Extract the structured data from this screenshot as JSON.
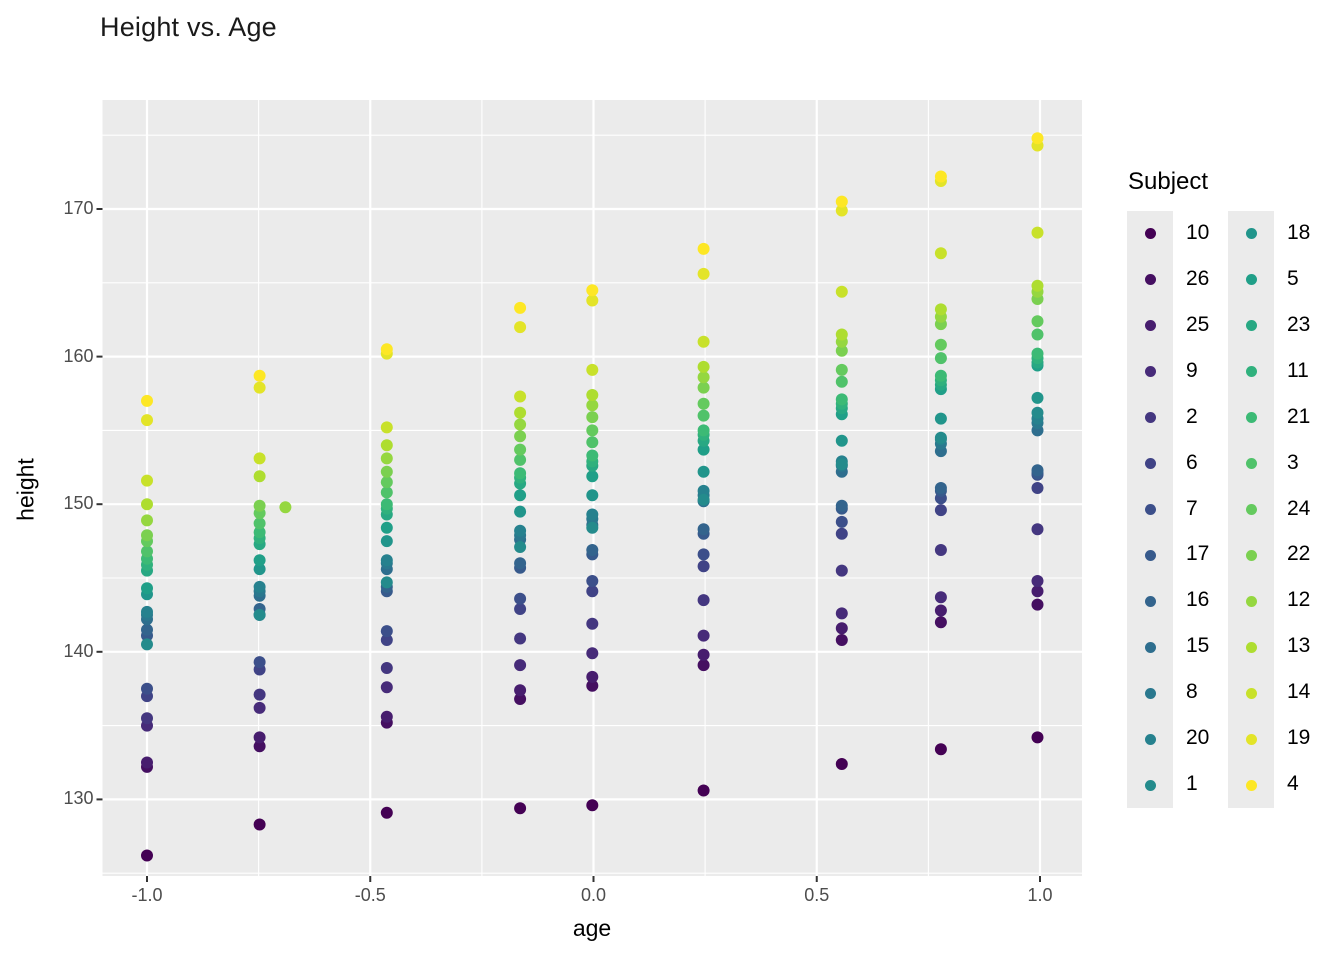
{
  "title": "Height vs. Age",
  "axes": {
    "x": {
      "label": "age",
      "tick_labels": [
        "-1.0",
        "-0.5",
        "0.0",
        "0.5",
        "1.0"
      ],
      "tick_values": [
        -1.0,
        -0.5,
        0.0,
        0.5,
        1.0
      ],
      "minor_values": [
        -0.75,
        -0.25,
        0.25,
        0.75
      ]
    },
    "y": {
      "label": "height",
      "tick_labels": [
        "130",
        "140",
        "150",
        "160",
        "170"
      ],
      "tick_values": [
        130,
        140,
        150,
        160,
        170
      ],
      "minor_values": [
        125,
        135,
        145,
        155,
        165,
        175
      ]
    }
  },
  "legend": {
    "title": "Subject",
    "rows_per_column": 13
  },
  "colors": {
    "panel_background": "#ebebeb",
    "gridline": "#ffffff",
    "tick_mark": "#333333",
    "tick_text": "#4d4d4d",
    "title_text": "#1a1a1a"
  },
  "chart_data": {
    "type": "scatter",
    "title": "Height vs. Age",
    "xlabel": "age",
    "ylabel": "height",
    "xlim": [
      -1.1,
      1.09
    ],
    "ylim": [
      124.8,
      177.4
    ],
    "grid": "on",
    "legend_position": "right",
    "x": [
      -1.0,
      -0.7479,
      -0.463,
      -0.1643,
      -0.0027,
      0.2466,
      0.5562,
      0.7781,
      0.9945
    ],
    "series": [
      {
        "name": "10",
        "color": "#440154",
        "heights": [
          126.2,
          128.3,
          129.1,
          129.4,
          129.6,
          130.6,
          132.4,
          133.4,
          134.2
        ]
      },
      {
        "name": "26",
        "color": "#450f61",
        "heights": [
          132.2,
          133.6,
          135.2,
          136.8,
          137.7,
          139.1,
          140.8,
          142.0,
          143.2
        ]
      },
      {
        "name": "25",
        "color": "#471d6e",
        "heights": [
          132.5,
          134.2,
          135.6,
          137.4,
          138.3,
          139.8,
          141.6,
          142.8,
          144.1
        ]
      },
      {
        "name": "9",
        "color": "#472b79",
        "heights": [
          135.0,
          136.2,
          137.6,
          139.1,
          139.9,
          141.1,
          142.6,
          143.7,
          144.8
        ]
      },
      {
        "name": "2",
        "color": "#443780",
        "heights": [
          135.5,
          137.1,
          138.9,
          140.9,
          141.9,
          143.5,
          145.5,
          146.9,
          148.3
        ]
      },
      {
        "name": "6",
        "color": "#404386",
        "heights": [
          137.0,
          138.8,
          140.8,
          142.9,
          144.1,
          145.8,
          148.0,
          149.6,
          151.1
        ]
      },
      {
        "name": "7",
        "color": "#3c4f8a",
        "heights": [
          137.5,
          139.3,
          141.4,
          143.6,
          144.8,
          146.6,
          148.8,
          150.4,
          152.0
        ]
      },
      {
        "name": "17",
        "color": "#375a8c",
        "heights": [
          141.1,
          142.5,
          144.1,
          145.7,
          146.6,
          148.0,
          149.7,
          150.9,
          152.1
        ]
      },
      {
        "name": "16",
        "color": "#33648d",
        "heights": [
          141.5,
          142.9,
          144.4,
          146.0,
          146.9,
          148.3,
          149.9,
          151.1,
          152.3
        ]
      },
      {
        "name": "15",
        "color": "#2e6e8e",
        "heights": [
          142.2,
          143.8,
          145.6,
          147.6,
          148.6,
          150.2,
          152.2,
          153.6,
          155.0
        ]
      },
      {
        "name": "8",
        "color": "#2a788e",
        "heights": [
          142.5,
          144.1,
          146.0,
          147.9,
          149.0,
          150.6,
          152.6,
          154.1,
          155.5
        ]
      },
      {
        "name": "20",
        "color": "#26818e",
        "heights": [
          142.7,
          144.4,
          146.2,
          148.2,
          149.3,
          150.9,
          152.9,
          154.4,
          155.8
        ]
      },
      {
        "name": "1",
        "color": "#248b8c",
        "heights": [
          140.5,
          142.5,
          144.7,
          147.1,
          148.4,
          150.3,
          152.7,
          154.5,
          156.2
        ]
      },
      {
        "name": "18",
        "color": "#21958b",
        "heights": [
          143.9,
          145.6,
          147.5,
          149.5,
          150.6,
          152.2,
          154.3,
          155.8,
          157.2
        ]
      },
      {
        "name": "5",
        "color": "#209f88",
        "heights": [
          144.3,
          146.2,
          148.4,
          150.6,
          151.9,
          153.7,
          156.1,
          157.8,
          159.4
        ]
      },
      {
        "name": "23",
        "color": "#28a883",
        "heights": [
          145.5,
          147.3,
          149.3,
          151.4,
          152.6,
          154.3,
          156.5,
          158.1,
          159.6
        ]
      },
      {
        "name": "11",
        "color": "#30b17d",
        "heights": [
          145.9,
          147.7,
          149.7,
          151.8,
          152.9,
          154.7,
          156.8,
          158.4,
          159.9
        ]
      },
      {
        "name": "21",
        "color": "#3cba75",
        "heights": [
          146.3,
          148.1,
          150.0,
          152.1,
          153.3,
          155.0,
          157.1,
          158.7,
          160.2
        ]
      },
      {
        "name": "3",
        "color": "#50c26a",
        "heights": [
          146.8,
          148.7,
          150.8,
          153.0,
          154.2,
          156.0,
          158.3,
          159.9,
          161.5
        ]
      },
      {
        "name": "24",
        "color": "#64ca5e",
        "heights": [
          147.5,
          149.4,
          151.5,
          153.7,
          155.0,
          156.8,
          159.1,
          160.8,
          162.4
        ]
      },
      {
        "name": "22",
        "color": "#7bd050",
        "heights": [
          147.9,
          149.9,
          152.2,
          154.6,
          155.9,
          157.9,
          160.4,
          162.2,
          163.9
        ]
      },
      {
        "name": "12",
        "color": "#95d740",
        "heights": [
          148.9,
          149.8,
          153.1,
          155.4,
          156.7,
          158.6,
          161.0,
          162.7,
          164.4
        ]
      },
      {
        "name": "13",
        "color": "#aedd30",
        "heights": [
          150.0,
          151.9,
          154.0,
          156.2,
          157.4,
          159.3,
          161.5,
          163.2,
          164.8
        ]
      },
      {
        "name": "14",
        "color": "#c8e12a",
        "heights": [
          151.6,
          153.1,
          155.2,
          157.3,
          159.1,
          161.0,
          164.4,
          167.0,
          168.4
        ]
      },
      {
        "name": "19",
        "color": "#e3e428",
        "heights": [
          155.7,
          157.9,
          160.2,
          162.0,
          163.8,
          165.6,
          169.9,
          171.9,
          174.3
        ]
      },
      {
        "name": "4",
        "color": "#fde725",
        "heights": [
          157.0,
          158.7,
          160.5,
          163.3,
          164.5,
          167.3,
          170.5,
          172.2,
          174.8
        ]
      }
    ],
    "age_overrides": [
      {
        "series": "12",
        "occasion_index": 1,
        "age": -0.69
      }
    ]
  }
}
